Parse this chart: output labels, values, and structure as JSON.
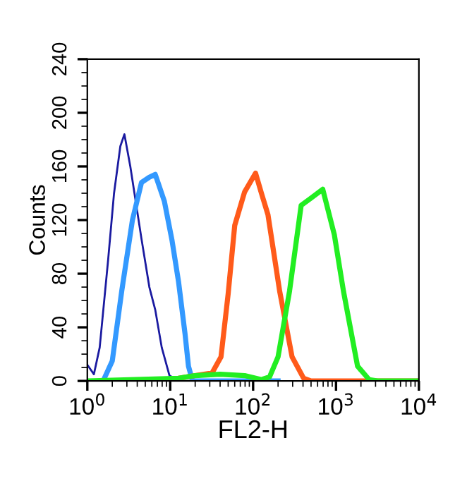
{
  "chart_data": {
    "type": "line",
    "xlabel": "FL2-H",
    "ylabel": "Counts",
    "log": "x",
    "xlim": [
      1,
      10000
    ],
    "xticks": [
      {
        "value": 1,
        "label": "10$^{0}$"
      },
      {
        "value": 10,
        "label": "10$^{1}$"
      },
      {
        "value": 100,
        "label": "10$^{2}$"
      },
      {
        "value": 1000,
        "label": "10$^{3}$"
      },
      {
        "value": 10000,
        "label": "10$^{4}$"
      }
    ],
    "ylim": [
      0,
      240
    ],
    "yticks": [
      0,
      40,
      80,
      120,
      160,
      200,
      240
    ],
    "grid": false,
    "marker": "none",
    "line_style": "solid",
    "series": [
      {
        "color": "#1a1aa0",
        "x": [
          1.0,
          1.2,
          1.41,
          1.78,
          2.1,
          2.5,
          2.8,
          3.3,
          4.5,
          5.6,
          6.6,
          7.9,
          9.8,
          12.6,
          20
        ],
        "values": [
          12,
          5,
          25,
          90,
          140,
          175,
          184,
          160,
          106,
          70,
          53,
          25,
          4,
          0,
          0
        ]
      },
      {
        "color": "#3399ff",
        "x": [
          1.55,
          2.0,
          2.6,
          3.5,
          4.5,
          5.6,
          6.6,
          8.5,
          10.5,
          12.6,
          15.1,
          16.6,
          18.6,
          200
        ],
        "values": [
          0,
          15,
          67,
          120,
          148,
          152,
          154,
          134,
          105,
          74,
          35,
          11,
          0,
          0
        ]
      },
      {
        "color": "#ff5a1a",
        "x": [
          10,
          12.6,
          20,
          32,
          41,
          50,
          60,
          79,
          107,
          126,
          151,
          209,
          295,
          407,
          501,
          10000
        ],
        "values": [
          0,
          2,
          4,
          6,
          18,
          65,
          116,
          141,
          155,
          140,
          124,
          67,
          18,
          2,
          0,
          0
        ]
      },
      {
        "color": "#22ee22",
        "x": [
          1,
          12.6,
          20,
          40,
          79,
          126,
          158,
          200,
          275,
          380,
          490,
          692,
          955,
          1230,
          1820,
          2510,
          3160,
          10000
        ],
        "values": [
          0,
          2,
          4,
          5,
          4,
          1,
          3,
          18,
          67,
          131,
          136,
          143,
          109,
          67,
          11,
          1,
          0,
          0
        ]
      }
    ]
  }
}
